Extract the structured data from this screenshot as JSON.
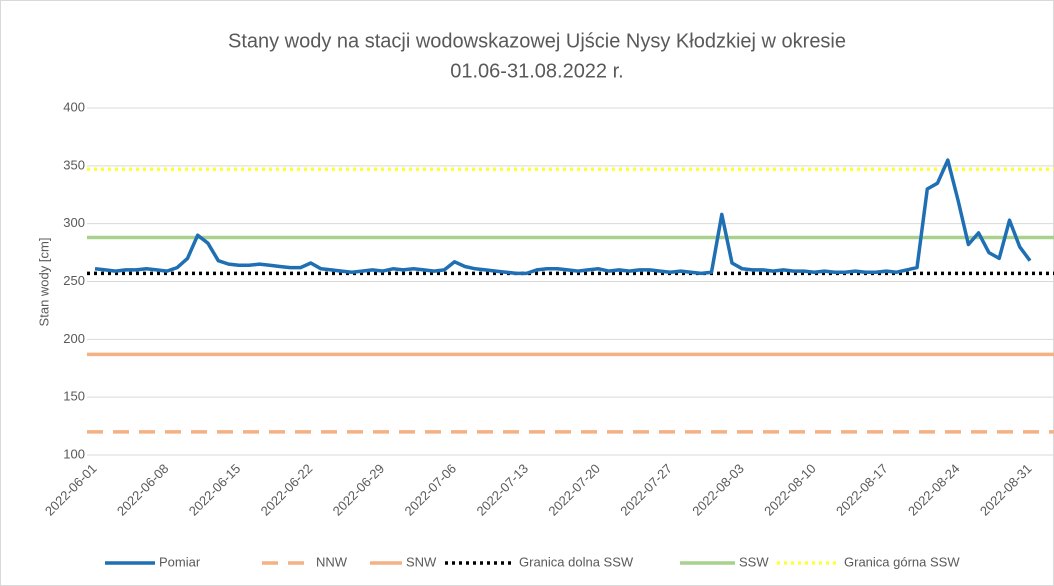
{
  "chart_data": {
    "type": "line",
    "title": [
      "Stany wody na stacji wodowskazowej Ujście Nysy Kłodzkiej w okresie",
      "01.06-31.08.2022 r."
    ],
    "y_label": "Stan wody [cm]",
    "categories": [
      "2022-06-01",
      null,
      null,
      null,
      null,
      null,
      null,
      "2022-06-08",
      null,
      null,
      null,
      null,
      null,
      null,
      "2022-06-15",
      null,
      null,
      null,
      null,
      null,
      null,
      "2022-06-22",
      null,
      null,
      null,
      null,
      null,
      null,
      "2022-06-29",
      null,
      null,
      null,
      null,
      null,
      null,
      "2022-07-06",
      null,
      null,
      null,
      null,
      null,
      null,
      "2022-07-13",
      null,
      null,
      null,
      null,
      null,
      null,
      "2022-07-20",
      null,
      null,
      null,
      null,
      null,
      null,
      "2022-07-27",
      null,
      null,
      null,
      null,
      null,
      null,
      "2022-08-03",
      null,
      null,
      null,
      null,
      null,
      null,
      "2022-08-10",
      null,
      null,
      null,
      null,
      null,
      null,
      "2022-08-17",
      null,
      null,
      null,
      null,
      null,
      null,
      "2022-08-24",
      null,
      null,
      null,
      null,
      null,
      null,
      "2022-08-31"
    ],
    "series": [
      {
        "name": "Pomiar",
        "color": "#1f6fb4",
        "values": [
          261,
          260,
          259,
          260,
          260,
          261,
          260,
          259,
          262,
          270,
          290,
          283,
          268,
          265,
          264,
          264,
          265,
          264,
          263,
          262,
          262,
          266,
          261,
          260,
          259,
          258,
          259,
          260,
          259,
          261,
          260,
          261,
          260,
          259,
          260,
          267,
          263,
          261,
          260,
          259,
          258,
          257,
          257,
          260,
          261,
          261,
          260,
          259,
          260,
          261,
          259,
          260,
          259,
          260,
          260,
          259,
          258,
          259,
          258,
          257,
          258,
          308,
          266,
          261,
          260,
          260,
          259,
          260,
          259,
          259,
          258,
          259,
          258,
          258,
          259,
          258,
          258,
          259,
          258,
          260,
          262,
          330,
          335,
          355,
          320,
          282,
          292,
          275,
          270,
          303,
          280,
          268
        ]
      }
    ],
    "reference_lines": [
      {
        "name": "NNW",
        "value": 120,
        "color": "#f4b183",
        "style": "dashed"
      },
      {
        "name": "SNW",
        "value": 187,
        "color": "#f4b183",
        "style": "solid"
      },
      {
        "name": "Granica dolna SSW",
        "value": 257,
        "color": "#000000",
        "style": "dotted"
      },
      {
        "name": "SSW",
        "value": 288,
        "color": "#a9d18e",
        "style": "solid"
      },
      {
        "name": "Granica górna SSW",
        "value": 347,
        "color": "#ffff33",
        "style": "dotted"
      }
    ],
    "ylim": [
      100,
      400
    ],
    "yticks": [
      100,
      150,
      200,
      250,
      300,
      350,
      400
    ],
    "grid": true
  }
}
